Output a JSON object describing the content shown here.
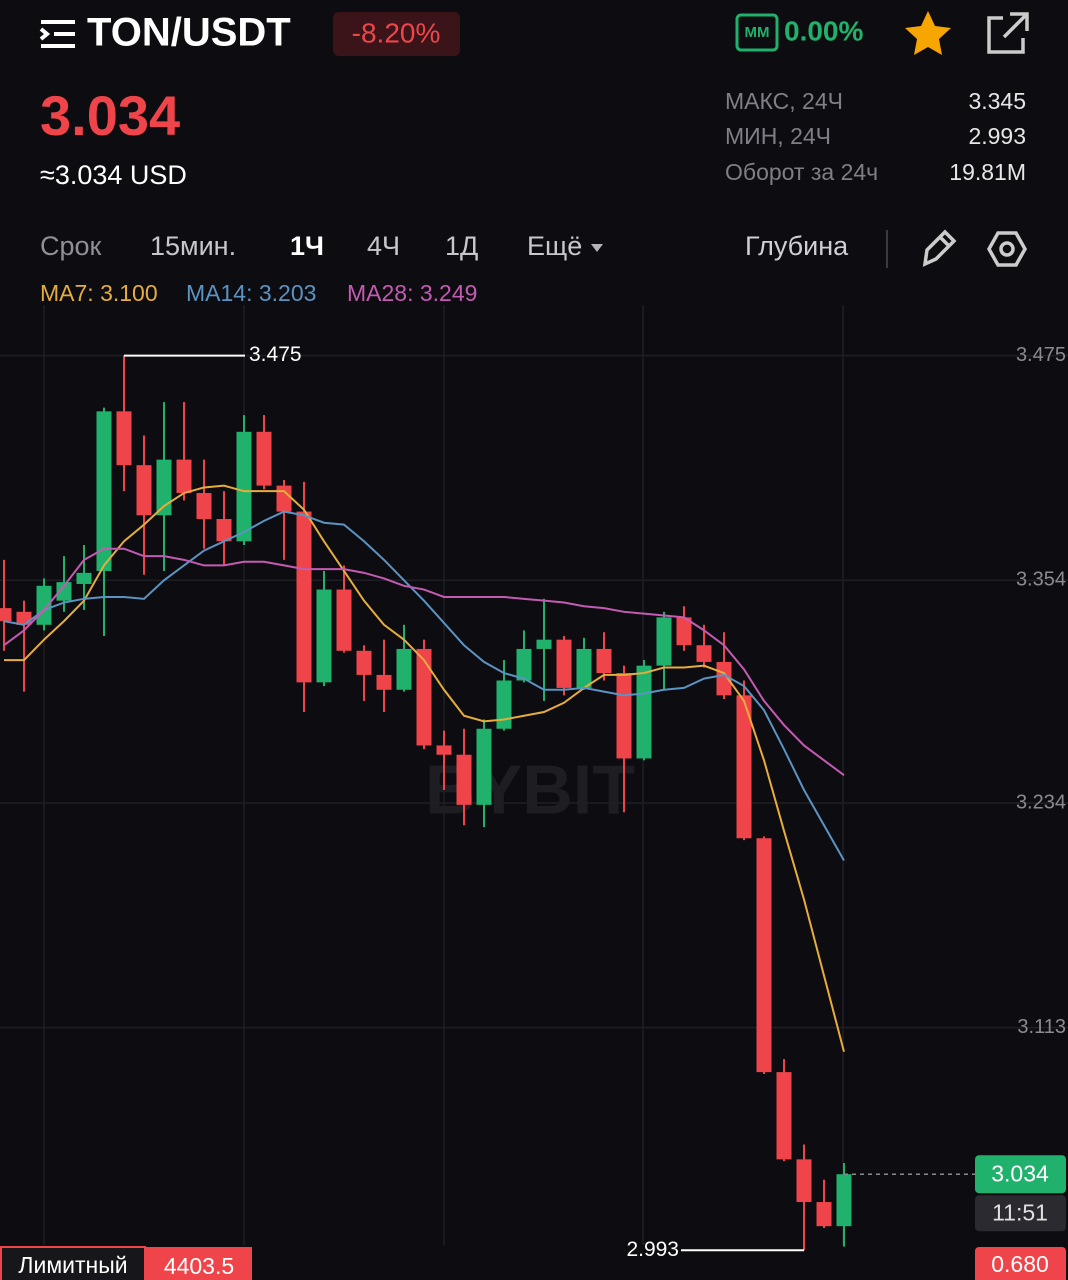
{
  "header": {
    "pair": "TON/USDT",
    "change": "-8.20%",
    "mm_label": "MM",
    "mm_value": "0.00%",
    "price": "3.034",
    "price_usd": "≈3.034 USD",
    "stats": [
      {
        "label": "МАКС, 24Ч",
        "value": "3.345"
      },
      {
        "label": "МИН, 24Ч",
        "value": "2.993"
      },
      {
        "label": "Оборот за 24ч",
        "value": "19.81M"
      }
    ]
  },
  "tabs": {
    "items": [
      "Срок",
      "15мин.",
      "1Ч",
      "4Ч",
      "1Д",
      "Ещё"
    ],
    "active": 2,
    "depth": "Глубина"
  },
  "chart_data": {
    "type": "candlestick",
    "watermark": "BYBIT",
    "ylim": [
      2.977,
      3.505
    ],
    "yticks": [
      3.475,
      3.354,
      3.234,
      3.113
    ],
    "grid": true,
    "up_color": "#20b26c",
    "down_color": "#ef454a",
    "open": [
      3.339,
      3.337,
      3.33,
      3.343,
      3.352,
      3.359,
      3.445,
      3.416,
      3.389,
      3.419,
      3.401,
      3.387,
      3.375,
      3.434,
      3.405,
      3.391,
      3.299,
      3.349,
      3.316,
      3.303,
      3.295,
      3.317,
      3.265,
      3.26,
      3.233,
      3.274,
      3.3,
      3.317,
      3.322,
      3.296,
      3.317,
      3.304,
      3.258,
      3.308,
      3.334,
      3.319,
      3.31,
      3.292,
      3.215,
      3.089,
      3.042,
      3.019,
      3.006
    ],
    "high": [
      3.365,
      3.343,
      3.355,
      3.367,
      3.373,
      3.447,
      3.475,
      3.432,
      3.45,
      3.45,
      3.419,
      3.402,
      3.443,
      3.443,
      3.408,
      3.407,
      3.359,
      3.362,
      3.319,
      3.322,
      3.33,
      3.322,
      3.273,
      3.274,
      3.279,
      3.311,
      3.327,
      3.344,
      3.324,
      3.323,
      3.326,
      3.308,
      3.311,
      3.337,
      3.34,
      3.33,
      3.326,
      3.3,
      3.216,
      3.096,
      3.05,
      3.031,
      3.04
    ],
    "low": [
      3.316,
      3.294,
      3.327,
      3.337,
      3.338,
      3.324,
      3.402,
      3.357,
      3.359,
      3.397,
      3.371,
      3.362,
      3.373,
      3.403,
      3.365,
      3.283,
      3.297,
      3.315,
      3.289,
      3.283,
      3.294,
      3.263,
      3.241,
      3.222,
      3.221,
      3.273,
      3.299,
      3.289,
      3.292,
      3.295,
      3.3,
      3.229,
      3.257,
      3.295,
      3.316,
      3.307,
      3.29,
      3.214,
      3.088,
      3.041,
      2.993,
      3.005,
      2.995
    ],
    "close": [
      3.332,
      3.33,
      3.351,
      3.353,
      3.358,
      3.445,
      3.416,
      3.389,
      3.419,
      3.401,
      3.387,
      3.375,
      3.434,
      3.405,
      3.391,
      3.299,
      3.349,
      3.316,
      3.303,
      3.295,
      3.317,
      3.265,
      3.26,
      3.233,
      3.274,
      3.3,
      3.317,
      3.322,
      3.296,
      3.317,
      3.304,
      3.258,
      3.308,
      3.334,
      3.319,
      3.31,
      3.292,
      3.215,
      3.089,
      3.042,
      3.019,
      3.006,
      3.034
    ],
    "series": [
      {
        "label": "MA7: 3.100",
        "color": "#e6ad3c",
        "values": [
          3.311,
          3.311,
          3.322,
          3.332,
          3.343,
          3.362,
          3.375,
          3.384,
          3.394,
          3.401,
          3.404,
          3.405,
          3.402,
          3.402,
          3.402,
          3.392,
          3.375,
          3.359,
          3.343,
          3.33,
          3.322,
          3.311,
          3.295,
          3.281,
          3.278,
          3.279,
          3.281,
          3.283,
          3.288,
          3.296,
          3.303,
          3.303,
          3.304,
          3.307,
          3.307,
          3.308,
          3.304,
          3.289,
          3.257,
          3.219,
          3.182,
          3.141,
          3.1
        ]
      },
      {
        "label": "MA14: 3.203",
        "color": "#5b93c2",
        "values": [
          3.332,
          3.33,
          3.338,
          3.342,
          3.344,
          3.345,
          3.345,
          3.344,
          3.354,
          3.362,
          3.37,
          3.375,
          3.38,
          3.386,
          3.391,
          3.389,
          3.385,
          3.384,
          3.375,
          3.365,
          3.354,
          3.343,
          3.331,
          3.319,
          3.31,
          3.304,
          3.301,
          3.295,
          3.295,
          3.296,
          3.294,
          3.292,
          3.293,
          3.295,
          3.296,
          3.301,
          3.303,
          3.297,
          3.284,
          3.263,
          3.241,
          3.222,
          3.203
        ]
      },
      {
        "label": "MA28: 3.249",
        "color": "#c45bb2",
        "values": [
          3.319,
          3.327,
          3.338,
          3.351,
          3.365,
          3.371,
          3.371,
          3.367,
          3.367,
          3.365,
          3.362,
          3.362,
          3.364,
          3.364,
          3.362,
          3.36,
          3.36,
          3.36,
          3.358,
          3.355,
          3.351,
          3.349,
          3.345,
          3.345,
          3.345,
          3.345,
          3.344,
          3.343,
          3.342,
          3.34,
          3.339,
          3.337,
          3.336,
          3.335,
          3.334,
          3.327,
          3.319,
          3.306,
          3.289,
          3.276,
          3.265,
          3.257,
          3.249
        ]
      }
    ],
    "countdown": "11:51"
  },
  "footer": {
    "order_type": "Лимитный",
    "left_value": "4403.5",
    "right_value": "0.680"
  }
}
